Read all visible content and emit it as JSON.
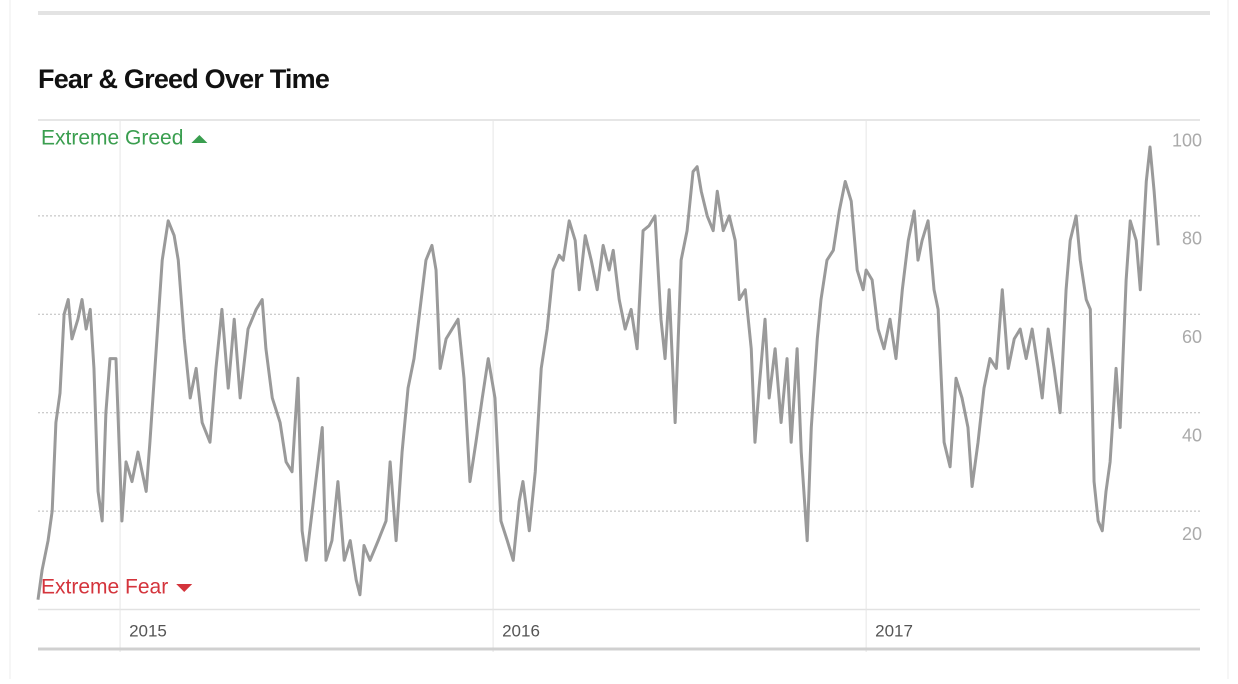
{
  "chart_data": {
    "type": "line",
    "title": "Fear & Greed Over Time",
    "annotations": {
      "top": "Extreme Greed",
      "bottom": "Extreme Fear"
    },
    "annotation_colors": {
      "top": "#3a9e4f",
      "bottom": "#d4343c"
    },
    "color": "#9a9a9a",
    "grid": true,
    "xlim": [
      2014.78,
      2017.895
    ],
    "xticks": [
      2015,
      2016,
      2017
    ],
    "ylim": [
      0,
      100
    ],
    "yticks": [
      20,
      40,
      60,
      80,
      100
    ],
    "x": [
      2014.78,
      2014.791,
      2014.807,
      2014.818,
      2014.828,
      2014.839,
      2014.85,
      2014.861,
      2014.871,
      2014.887,
      2014.898,
      2014.909,
      2014.92,
      2014.93,
      2014.941,
      2014.952,
      2014.962,
      2014.973,
      2014.989,
      2015.005,
      2015.016,
      2015.032,
      2015.048,
      2015.07,
      2015.08,
      2015.097,
      2015.113,
      2015.129,
      2015.145,
      2015.156,
      2015.172,
      2015.188,
      2015.204,
      2015.22,
      2015.241,
      2015.257,
      2015.273,
      2015.29,
      2015.306,
      2015.322,
      2015.343,
      2015.365,
      2015.381,
      2015.391,
      2015.408,
      2015.429,
      2015.445,
      2015.461,
      2015.477,
      2015.488,
      2015.499,
      2015.515,
      2015.531,
      2015.542,
      2015.552,
      2015.568,
      2015.584,
      2015.601,
      2015.617,
      2015.633,
      2015.643,
      2015.654,
      2015.67,
      2015.692,
      2015.713,
      2015.724,
      2015.74,
      2015.756,
      2015.772,
      2015.788,
      2015.804,
      2015.82,
      2015.836,
      2015.847,
      2015.858,
      2015.874,
      2015.89,
      2015.906,
      2015.922,
      2015.938,
      2015.954,
      2015.971,
      2015.987,
      2016.005,
      2016.021,
      2016.038,
      2016.054,
      2016.07,
      2016.08,
      2016.097,
      2016.113,
      2016.129,
      2016.145,
      2016.161,
      2016.177,
      2016.188,
      2016.204,
      2016.22,
      2016.231,
      2016.247,
      2016.263,
      2016.279,
      2016.295,
      2016.311,
      2016.322,
      2016.338,
      2016.354,
      2016.37,
      2016.386,
      2016.402,
      2016.418,
      2016.434,
      2016.45,
      2016.461,
      2016.472,
      2016.488,
      2016.504,
      2016.52,
      2016.536,
      2016.547,
      2016.558,
      2016.574,
      2016.59,
      2016.601,
      2016.617,
      2016.633,
      2016.649,
      2016.66,
      2016.676,
      2016.692,
      2016.702,
      2016.713,
      2016.729,
      2016.74,
      2016.756,
      2016.772,
      2016.788,
      2016.799,
      2016.815,
      2016.826,
      2016.842,
      2016.853,
      2016.869,
      2016.879,
      2016.895,
      2016.912,
      2016.928,
      2016.944,
      2016.96,
      2016.976,
      2016.992,
      2017.0,
      2017.016,
      2017.032,
      2017.048,
      2017.064,
      2017.08,
      2017.097,
      2017.113,
      2017.129,
      2017.139,
      2017.15,
      2017.166,
      2017.182,
      2017.193,
      2017.209,
      2017.225,
      2017.241,
      2017.257,
      2017.273,
      2017.284,
      2017.3,
      2017.316,
      2017.332,
      2017.349,
      2017.365,
      2017.381,
      2017.397,
      2017.413,
      2017.429,
      2017.445,
      2017.461,
      2017.472,
      2017.488,
      2017.504,
      2017.52,
      2017.536,
      2017.547,
      2017.563,
      2017.574,
      2017.59,
      2017.601,
      2017.611,
      2017.622,
      2017.633,
      2017.643,
      2017.654,
      2017.67,
      2017.681,
      2017.697,
      2017.708,
      2017.724,
      2017.735,
      2017.751,
      2017.761,
      2017.772,
      2017.783
    ],
    "values": [
      2,
      8,
      14,
      20,
      38,
      44,
      60,
      63,
      55,
      59,
      63,
      57,
      61,
      49,
      24,
      18,
      40,
      51,
      51,
      18,
      30,
      26,
      32,
      24,
      34,
      53,
      71,
      79,
      76,
      71,
      55,
      43,
      49,
      38,
      34,
      49,
      61,
      45,
      59,
      43,
      57,
      61,
      63,
      53,
      43,
      38,
      30,
      28,
      47,
      16,
      10,
      20,
      30,
      37,
      10,
      14,
      26,
      10,
      14,
      6,
      3,
      13,
      10,
      14,
      18,
      30,
      14,
      32,
      45,
      51,
      61,
      71,
      74,
      69,
      49,
      55,
      57,
      59,
      47,
      26,
      34,
      43,
      51,
      43,
      18,
      14,
      10,
      22,
      26,
      16,
      28,
      49,
      57,
      69,
      72,
      71,
      79,
      75,
      65,
      76,
      71,
      65,
      74,
      69,
      73,
      63,
      57,
      61,
      53,
      77,
      78,
      80,
      59,
      51,
      65,
      38,
      71,
      77,
      89,
      90,
      85,
      80,
      77,
      85,
      77,
      80,
      75,
      63,
      65,
      53,
      34,
      45,
      59,
      43,
      53,
      38,
      51,
      34,
      53,
      32,
      14,
      37,
      55,
      63,
      71,
      73,
      81,
      87,
      83,
      69,
      65,
      69,
      67,
      57,
      53,
      59,
      51,
      65,
      75,
      81,
      71,
      75,
      79,
      65,
      61,
      34,
      29,
      47,
      43,
      37,
      25,
      34,
      45,
      51,
      49,
      65,
      49,
      55,
      57,
      51,
      57,
      49,
      43,
      57,
      49,
      40,
      65,
      75,
      80,
      71,
      63,
      61,
      26,
      18,
      16,
      24,
      30,
      49,
      37,
      67,
      79,
      75,
      65,
      87,
      94,
      85,
      74
    ]
  }
}
